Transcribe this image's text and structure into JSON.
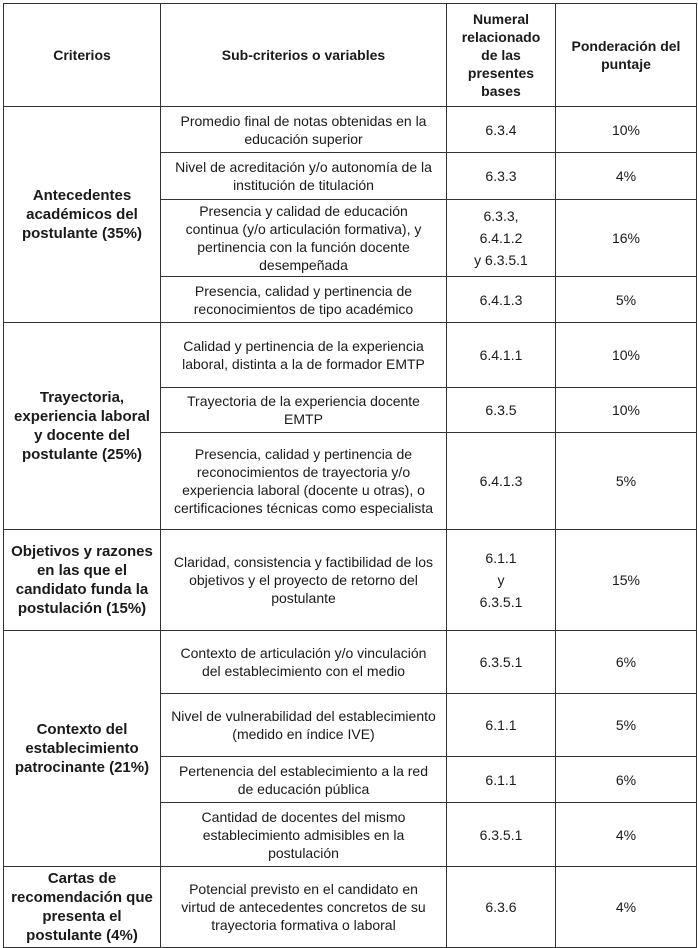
{
  "header": {
    "criterios": "Criterios",
    "subcriterios": "Sub-criterios o variables",
    "numeral": "Numeral relacionado de las presentes bases",
    "ponderacion": "Ponderación del puntaje"
  },
  "groups": [
    {
      "criterio": "Antecedentes académicos del postulante (35%)",
      "rows": [
        {
          "sub": "Promedio final de notas obtenidas en la educación superior",
          "numeral": "6.3.4",
          "ponderacion": "10%"
        },
        {
          "sub": "Nivel de acreditación y/o autonomía de la institución de titulación",
          "numeral": "6.3.3",
          "ponderacion": "4%"
        },
        {
          "sub": "Presencia y calidad de educación continua (y/o articulación formativa), y pertinencia con la función docente desempeñada",
          "numeral": "6.3.3,\n6.4.1.2\ny 6.3.5.1",
          "ponderacion": "16%"
        },
        {
          "sub": "Presencia, calidad y pertinencia de reconocimientos de tipo académico",
          "numeral": "6.4.1.3",
          "ponderacion": "5%"
        }
      ]
    },
    {
      "criterio": "Trayectoria, experiencia laboral y docente del postulante (25%)",
      "rows": [
        {
          "sub": "Calidad y pertinencia de la experiencia laboral, distinta a la de formador EMTP",
          "numeral": "6.4.1.1",
          "ponderacion": "10%"
        },
        {
          "sub": "Trayectoria de la experiencia docente EMTP",
          "numeral": "6.3.5",
          "ponderacion": "10%"
        },
        {
          "sub": "Presencia, calidad y pertinencia de reconocimientos de trayectoria y/o experiencia laboral (docente u otras), o certificaciones técnicas como especialista",
          "numeral": "6.4.1.3",
          "ponderacion": "5%"
        }
      ]
    },
    {
      "criterio": "Objetivos y razones en las que el candidato funda la postulación (15%)",
      "rows": [
        {
          "sub": "Claridad, consistencia y factibilidad de los objetivos y el proyecto de retorno del  postulante",
          "numeral": "6.1.1\ny\n6.3.5.1",
          "ponderacion": "15%"
        }
      ]
    },
    {
      "criterio": "Contexto del establecimiento patrocinante (21%)",
      "rows": [
        {
          "sub": "Contexto de articulación y/o vinculación del establecimiento con el medio",
          "numeral": "6.3.5.1",
          "ponderacion": "6%"
        },
        {
          "sub": "Nivel de vulnerabilidad del establecimiento (medido en índice IVE)",
          "numeral": "6.1.1",
          "ponderacion": "5%"
        },
        {
          "sub": "Pertenencia del establecimiento a la red de educación pública",
          "numeral": "6.1.1",
          "ponderacion": "6%"
        },
        {
          "sub": "Cantidad de docentes del mismo establecimiento admisibles en la postulación",
          "numeral": "6.3.5.1",
          "ponderacion": "4%"
        }
      ]
    },
    {
      "criterio": "Cartas de recomendación que presenta el postulante (4%)",
      "rows": [
        {
          "sub": "Potencial previsto en el candidato en virtud de antecedentes concretos de su trayectoria formativa o laboral",
          "numeral": "6.3.6",
          "ponderacion": "4%"
        }
      ]
    }
  ]
}
